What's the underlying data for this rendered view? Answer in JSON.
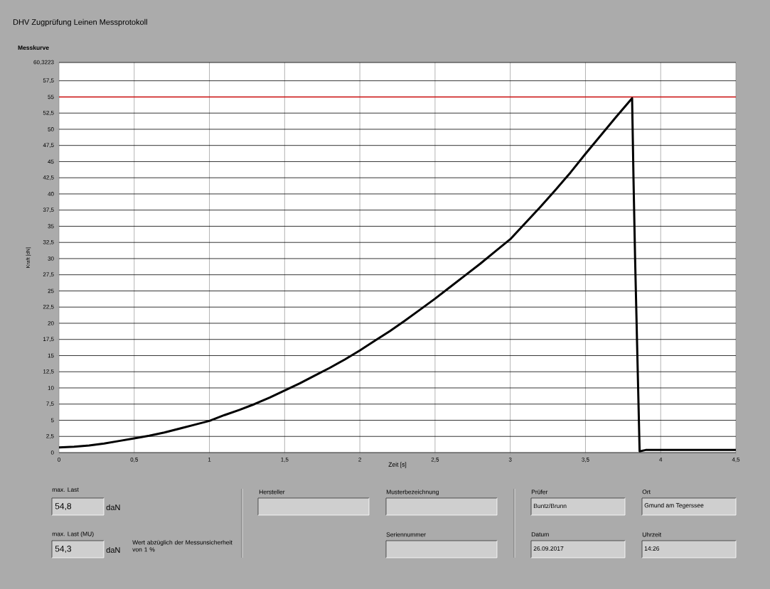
{
  "chart_data": {
    "type": "line",
    "title": "DHV Zugprüfung Leinen Messprotokoll",
    "subtitle": "Messkurve",
    "xlabel": "Zeit [s]",
    "ylabel": "Kraft [dN]",
    "x": [
      0,
      0.1,
      0.2,
      0.3,
      0.4,
      0.5,
      0.6,
      0.7,
      0.8,
      0.9,
      1.0,
      1.1,
      1.2,
      1.3,
      1.4,
      1.5,
      1.6,
      1.7,
      1.8,
      1.9,
      2.0,
      2.1,
      2.2,
      2.3,
      2.4,
      2.5,
      2.6,
      2.7,
      2.8,
      2.9,
      3.0,
      3.1,
      3.2,
      3.3,
      3.4,
      3.5,
      3.6,
      3.7,
      3.81,
      3.82,
      3.83,
      3.86,
      3.9,
      4.0,
      4.1,
      4.2,
      4.3,
      4.4,
      4.5
    ],
    "series": [
      {
        "color": "#000000",
        "values": [
          0.8,
          0.9,
          1.1,
          1.4,
          1.8,
          2.2,
          2.6,
          3.1,
          3.7,
          4.3,
          4.9,
          5.8,
          6.6,
          7.5,
          8.5,
          9.6,
          10.7,
          11.9,
          13.1,
          14.4,
          15.8,
          17.3,
          18.8,
          20.4,
          22.1,
          23.8,
          25.6,
          27.4,
          29.2,
          31.1,
          33.0,
          35.5,
          38.0,
          40.6,
          43.3,
          46.2,
          49.0,
          51.8,
          54.8,
          41.5,
          29.9,
          0.2,
          0.4,
          0.4,
          0.4,
          0.4,
          0.4,
          0.4,
          0.4
        ]
      }
    ],
    "xlim": [
      0,
      4.5
    ],
    "ylim": [
      0,
      60.3223
    ],
    "xticks": [
      0,
      {
        "value": 0.5,
        "label": "0,5"
      },
      1,
      {
        "value": 1.5,
        "label": "1,5"
      },
      2,
      {
        "value": 2.5,
        "label": "2,5"
      },
      3,
      {
        "value": 3.5,
        "label": "3,5"
      },
      4,
      {
        "value": 4.5,
        "label": "4,5"
      }
    ],
    "yticks": [
      0,
      {
        "value": 2.5,
        "label": "2,5"
      },
      5,
      {
        "value": 7.5,
        "label": "7,5"
      },
      10,
      {
        "value": 12.5,
        "label": "12,5"
      },
      15,
      {
        "value": 17.5,
        "label": "17,5"
      },
      20,
      {
        "value": 22.5,
        "label": "22,5"
      },
      25,
      {
        "value": 27.5,
        "label": "27,5"
      },
      30,
      {
        "value": 32.5,
        "label": "32,5"
      },
      35,
      {
        "value": 37.5,
        "label": "37,5"
      },
      40,
      {
        "value": 42.5,
        "label": "42,5"
      },
      45,
      {
        "value": 47.5,
        "label": "47,5"
      },
      50,
      {
        "value": 52.5,
        "label": "52,5"
      },
      55,
      {
        "value": 57.5,
        "label": "57,5"
      },
      {
        "value": 60.3223,
        "label": "60,3223"
      }
    ],
    "grid": true,
    "ref_lines": [
      {
        "axis": "y",
        "value": 55,
        "color": "#d01010"
      }
    ],
    "annotations": [
      "max. Last",
      "54,8",
      "daN",
      "max. Last (MU)",
      "54,3",
      "daN",
      "Wert abzüglich der Messunsicherheit von 1 %",
      "Hersteller",
      "Musterbezeichnung",
      "Seriennummer",
      "Prüfer",
      "Buntz/Brunn",
      "Ort",
      "Gmund am Tegerssee",
      "Datum",
      "26.09.2017",
      "Uhrzeit",
      "14:26"
    ]
  }
}
